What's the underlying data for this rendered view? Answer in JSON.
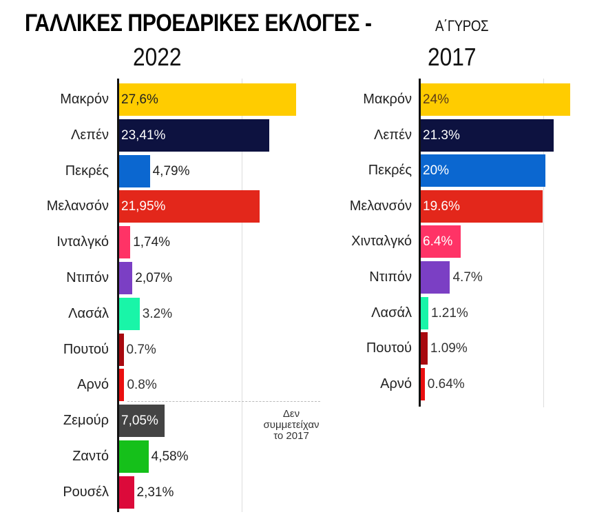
{
  "header": {
    "title": "ΓΑΛΛΙΚΕΣ ΠΡΟΕΔΡΙΚΕΣ ΕΚΛΟΓΕΣ -",
    "subtitle": "Α΄ΓΥΡΟΣ"
  },
  "panels": [
    {
      "year": "2022",
      "rows": [
        {
          "name": "Μακρόν",
          "value": 27.6,
          "label": "27,6%",
          "color": "#ffcc00",
          "label_inside": true,
          "label_color": "#222222"
        },
        {
          "name": "Λεπέν",
          "value": 23.41,
          "label": "23,41%",
          "color": "#0d1240",
          "label_inside": true,
          "label_color": "#ffffff"
        },
        {
          "name": "Πεκρές",
          "value": 4.79,
          "label": "4,79%",
          "color": "#0b67d0",
          "label_inside": false,
          "label_color": "#222222"
        },
        {
          "name": "Μελανσόν",
          "value": 21.95,
          "label": "21,95%",
          "color": "#e3271b",
          "label_inside": true,
          "label_color": "#ffffff"
        },
        {
          "name": "Ινταλγκό",
          "value": 1.74,
          "label": "1,74%",
          "color": "#ff3366",
          "label_inside": false,
          "label_color": "#222222"
        },
        {
          "name": "Ντιπόν",
          "value": 2.07,
          "label": "2,07%",
          "color": "#7b3fc4",
          "label_inside": false,
          "label_color": "#222222"
        },
        {
          "name": "Λασάλ",
          "value": 3.2,
          "label": "3.2%",
          "color": "#19f5a8",
          "label_inside": false,
          "label_color": "#333333"
        },
        {
          "name": "Πουτού",
          "value": 0.7,
          "label": "0.7%",
          "color": "#a8090f",
          "label_inside": false,
          "label_color": "#333333"
        },
        {
          "name": "Αρνό",
          "value": 0.8,
          "label": "0.8%",
          "color": "#ea0f10",
          "label_inside": false,
          "label_color": "#333333"
        },
        {
          "name": "Ζεμούρ",
          "value": 7.05,
          "label": "7,05%",
          "color": "#444444",
          "label_inside": true,
          "label_color": "#ffffff"
        },
        {
          "name": "Ζαντό",
          "value": 4.58,
          "label": "4,58%",
          "color": "#15c01a",
          "label_inside": false,
          "label_color": "#222222"
        },
        {
          "name": "Ρουσέλ",
          "value": 2.31,
          "label": "2,31%",
          "color": "#dc0a3a",
          "label_inside": false,
          "label_color": "#222222"
        }
      ]
    },
    {
      "year": "2017",
      "rows": [
        {
          "name": "Μακρόν",
          "value": 24,
          "label": "24%",
          "color": "#ffcc00",
          "label_inside": true,
          "label_color": "#5a3a1a"
        },
        {
          "name": "Λεπέν",
          "value": 21.3,
          "label": "21.3%",
          "color": "#0d1240",
          "label_inside": true,
          "label_color": "#ffffff"
        },
        {
          "name": "Πεκρές",
          "value": 20,
          "label": "20%",
          "color": "#0b67d0",
          "label_inside": true,
          "label_color": "#ffffff"
        },
        {
          "name": "Μελανσόν",
          "value": 19.6,
          "label": "19.6%",
          "color": "#e3271b",
          "label_inside": true,
          "label_color": "#ffffff"
        },
        {
          "name": "Χινταλγκό",
          "value": 6.4,
          "label": "6.4%",
          "color": "#ff3366",
          "label_inside": true,
          "label_color": "#ffffff"
        },
        {
          "name": "Ντιπόν",
          "value": 4.7,
          "label": "4.7%",
          "color": "#7b3fc4",
          "label_inside": false,
          "label_color": "#333333"
        },
        {
          "name": "Λασάλ",
          "value": 1.21,
          "label": "1.21%",
          "color": "#19f5a8",
          "label_inside": false,
          "label_color": "#333333"
        },
        {
          "name": "Πουτού",
          "value": 1.09,
          "label": "1.09%",
          "color": "#a8090f",
          "label_inside": false,
          "label_color": "#333333"
        },
        {
          "name": "Αρνό",
          "value": 0.64,
          "label": "0.64%",
          "color": "#ea0f10",
          "label_inside": false,
          "label_color": "#333333"
        }
      ]
    }
  ],
  "note": {
    "line1": "Δεν",
    "line2": "συμμετείχαν",
    "line3": "το 2017"
  },
  "chart_data": [
    {
      "type": "bar",
      "orientation": "horizontal",
      "title": "ΓΑΛΛΙΚΕΣ ΠΡΟΕΔΡΙΚΕΣ ΕΚΛΟΓΕΣ - Α΄ΓΥΡΟΣ 2022",
      "categories": [
        "Μακρόν",
        "Λεπέν",
        "Πεκρές",
        "Μελανσόν",
        "Ινταλγκό",
        "Ντιπόν",
        "Λασάλ",
        "Πουτού",
        "Αρνό",
        "Ζεμούρ",
        "Ζαντό",
        "Ρουσέλ"
      ],
      "values": [
        27.6,
        23.41,
        4.79,
        21.95,
        1.74,
        2.07,
        3.2,
        0.7,
        0.8,
        7.05,
        4.58,
        2.31
      ],
      "xlabel": "",
      "ylabel": "",
      "unit": "%",
      "grid": true,
      "annotations": [
        "Δεν συμμετείχαν το 2017 (Ζεμούρ, Ζαντό, Ρουσέλ)"
      ]
    },
    {
      "type": "bar",
      "orientation": "horizontal",
      "title": "ΓΑΛΛΙΚΕΣ ΠΡΟΕΔΡΙΚΕΣ ΕΚΛΟΓΕΣ - Α΄ΓΥΡΟΣ 2017",
      "categories": [
        "Μακρόν",
        "Λεπέν",
        "Πεκρές",
        "Μελανσόν",
        "Χινταλγκό",
        "Ντιπόν",
        "Λασάλ",
        "Πουτού",
        "Αρνό"
      ],
      "values": [
        24,
        21.3,
        20,
        19.6,
        6.4,
        4.7,
        1.21,
        1.09,
        0.64
      ],
      "xlabel": "",
      "ylabel": "",
      "unit": "%",
      "grid": true
    }
  ]
}
